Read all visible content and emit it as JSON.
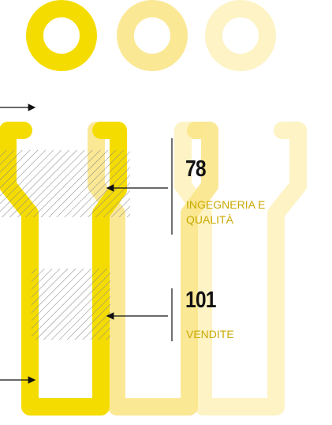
{
  "items": [
    {
      "value": 78,
      "label": "INGEGNERIA E QUALITÀ"
    },
    {
      "value": 101,
      "label": "VENDITE"
    }
  ]
}
